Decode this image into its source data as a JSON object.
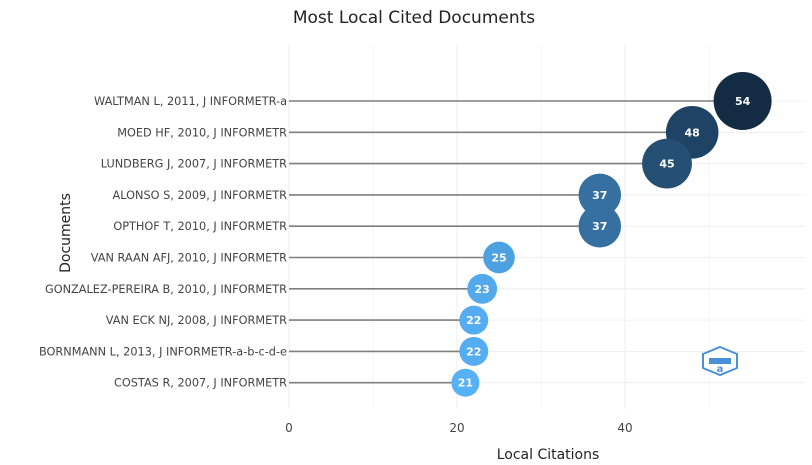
{
  "chart_data": {
    "type": "scatter",
    "style": "lollipop",
    "title": "Most Local Cited Documents",
    "xlabel": "Local Citations",
    "ylabel": "Documents",
    "xlim": [
      0,
      55
    ],
    "xticks": [
      0,
      20,
      40
    ],
    "grid": true,
    "legend": "none",
    "categories": [
      "WALTMAN L, 2011, J INFORMETR-a",
      "MOED HF, 2010, J INFORMETR",
      "LUNDBERG J, 2007, J INFORMETR",
      "ALONSO S, 2009, J INFORMETR",
      "OPTHOF T, 2010, J INFORMETR",
      "VAN RAAN AFJ, 2010, J INFORMETR",
      "GONZALEZ-PEREIRA B, 2010, J INFORMETR",
      "VAN ECK NJ, 2008, J INFORMETR",
      "BORNMANN L, 2013, J INFORMETR-a-b-c-d-e",
      "COSTAS R, 2007, J INFORMETR"
    ],
    "values": [
      54,
      48,
      45,
      37,
      37,
      25,
      23,
      22,
      22,
      21
    ],
    "colors": {
      "min": "#56b1f7",
      "max": "#132b43",
      "stem": "#7f7f7f",
      "grid": "#ececec",
      "label": "#444444"
    }
  },
  "watermark": {
    "name": "bibliometrix-logo-icon"
  }
}
